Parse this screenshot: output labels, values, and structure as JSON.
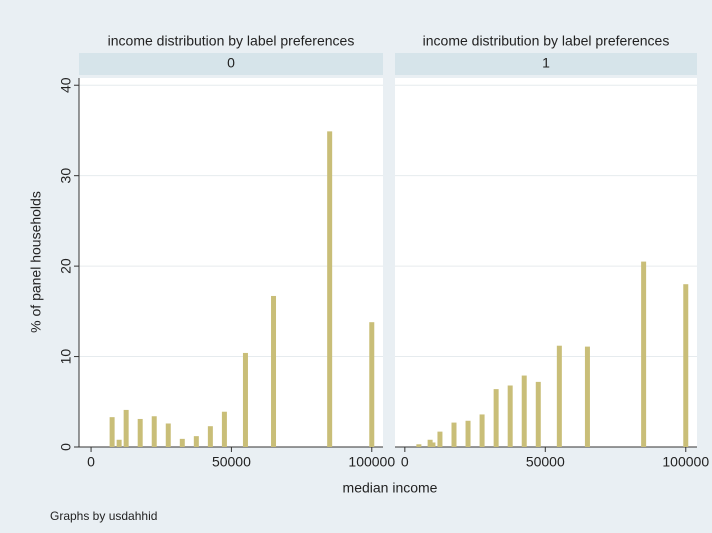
{
  "chart_data": [
    {
      "type": "bar",
      "title": "income distribution by label preferences",
      "subtitle": "0",
      "x": [
        7500,
        10000,
        12500,
        17500,
        22500,
        27500,
        32500,
        37500,
        42500,
        47500,
        55000,
        65000,
        85000,
        100000
      ],
      "values": [
        3.3,
        0.8,
        4.1,
        3.1,
        3.4,
        2.6,
        0.9,
        1.2,
        2.3,
        3.9,
        10.4,
        16.7,
        34.9,
        13.8
      ],
      "color": "#c9be78",
      "xlim": [
        -4300,
        104000
      ],
      "ylim": [
        0,
        40.8
      ],
      "xticks": [
        0,
        50000,
        100000
      ],
      "yticks": [
        0,
        10,
        20,
        30,
        40
      ],
      "grid": true
    },
    {
      "type": "bar",
      "title": "income distribution by label preferences",
      "subtitle": "1",
      "x": [
        5000,
        9000,
        10000,
        12500,
        17500,
        22500,
        27500,
        32500,
        37500,
        42500,
        47500,
        55000,
        65000,
        85000,
        100000
      ],
      "values": [
        0.3,
        0.8,
        0.5,
        1.7,
        2.7,
        2.9,
        3.6,
        6.4,
        6.8,
        7.9,
        7.2,
        11.2,
        11.1,
        20.5,
        18.0
      ],
      "color": "#c9be78",
      "xlim": [
        -3500,
        104000
      ],
      "ylim": [
        0,
        40.8
      ],
      "xticks": [
        0,
        50000,
        100000
      ],
      "yticks": [
        0,
        10,
        20,
        30,
        40
      ],
      "grid": true
    }
  ],
  "y_label": "% of panel households",
  "x_label": "median income",
  "note": "Graphs by usdahhid"
}
